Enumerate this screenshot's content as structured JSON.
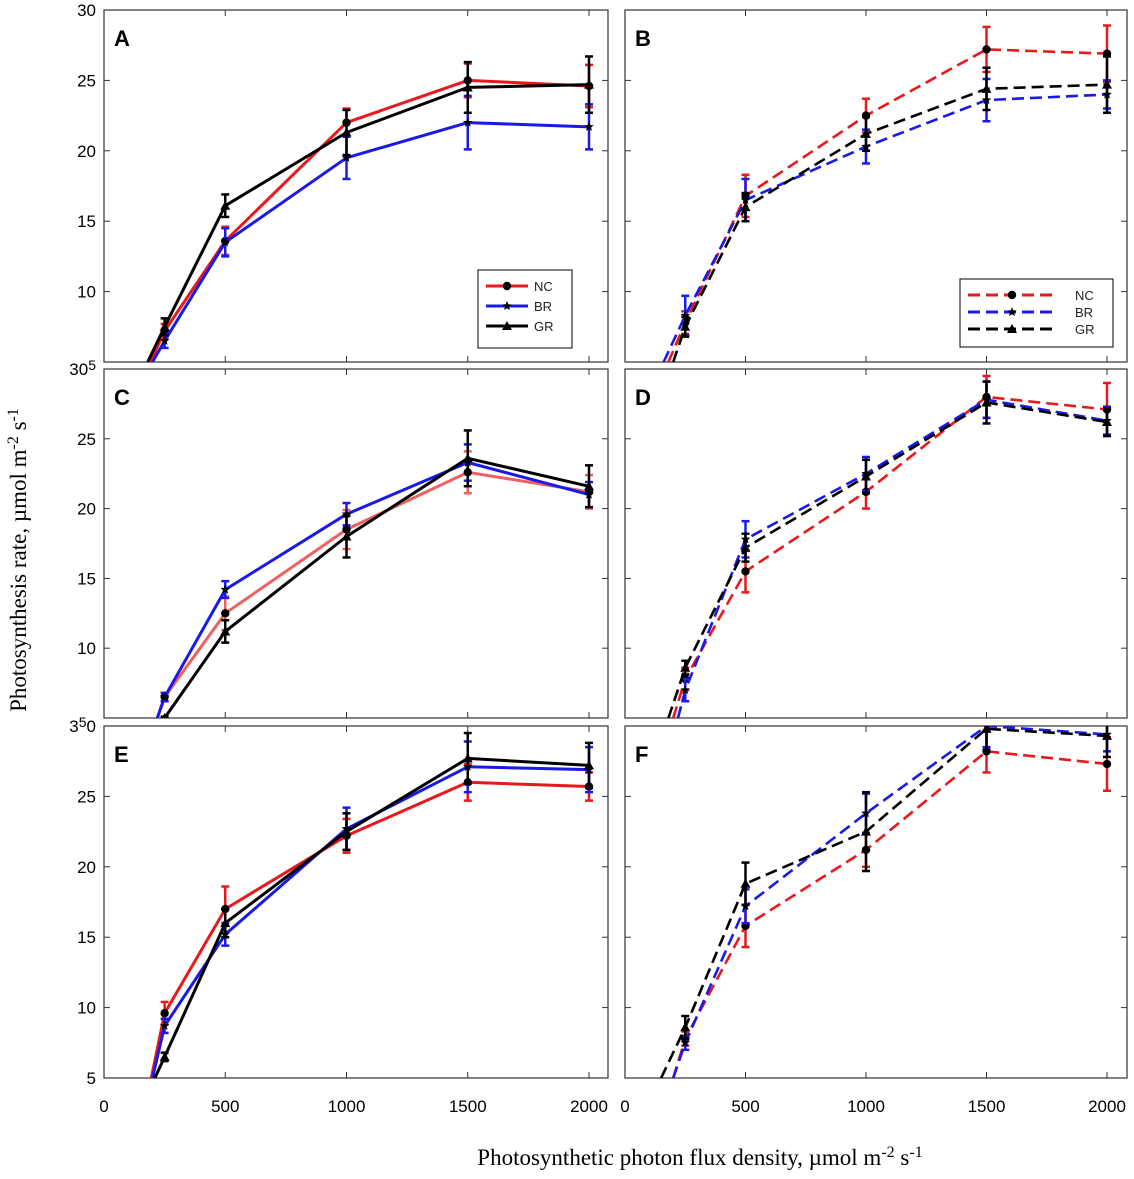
{
  "figure": {
    "ylabel_main": "Photosynthesis rate, µmol m",
    "ylabel_sup1": "-2",
    "ylabel_mid": " s",
    "ylabel_sup2": "-1",
    "xlabel_main": "Photosynthetic photon flux density, µmol m",
    "xlabel_sup1": "-2",
    "xlabel_mid": " s",
    "xlabel_sup2": "-1"
  },
  "colors": {
    "NC": "#e8181c",
    "NC_light": "#f06060",
    "BR": "#1a1ae6",
    "GR": "#000000"
  },
  "legend": {
    "NC": "NC",
    "BR": "BR",
    "GR": "GR"
  },
  "chart_data": [
    {
      "panel": "A",
      "type": "line",
      "line_style": "solid",
      "x": [
        250,
        500,
        1000,
        1500,
        2000
      ],
      "xlim": [
        0,
        2000
      ],
      "ylim": [
        5,
        30
      ],
      "yticks": [
        5,
        10,
        15,
        20,
        25,
        30
      ],
      "xticks": [
        0,
        500,
        1000,
        1500,
        2000
      ],
      "show_legend": true,
      "legend_position": "lower-right",
      "series": [
        {
          "name": "NC",
          "values": [
            7.2,
            13.6,
            22.0,
            25.0,
            24.6
          ],
          "errors": [
            0.5,
            1.0,
            1.0,
            1.2,
            1.5
          ],
          "start": [
            190,
            5
          ]
        },
        {
          "name": "BR",
          "values": [
            6.5,
            13.5,
            19.5,
            22.0,
            21.7
          ],
          "errors": [
            0.5,
            1.0,
            1.5,
            1.9,
            1.6
          ],
          "start": [
            200,
            5
          ]
        },
        {
          "name": "GR",
          "values": [
            7.5,
            16.1,
            21.3,
            24.5,
            24.7
          ],
          "errors": [
            0.6,
            0.8,
            1.6,
            1.8,
            2.0
          ],
          "start": [
            180,
            5
          ]
        }
      ]
    },
    {
      "panel": "B",
      "type": "line",
      "line_style": "dashed",
      "x": [
        250,
        500,
        1000,
        1500,
        2000
      ],
      "xlim": [
        0,
        2000
      ],
      "ylim": [
        5,
        30
      ],
      "yticks": [
        5,
        10,
        15,
        20,
        25,
        30
      ],
      "xticks": [
        0,
        500,
        1000,
        1500,
        2000
      ],
      "show_legend": true,
      "legend_position": "lower-right",
      "series": [
        {
          "name": "NC",
          "values": [
            7.8,
            16.8,
            22.5,
            27.2,
            26.9
          ],
          "errors": [
            0.8,
            1.5,
            1.2,
            1.6,
            2.0
          ],
          "start": [
            180,
            5
          ]
        },
        {
          "name": "BR",
          "values": [
            8.3,
            16.5,
            20.3,
            23.6,
            24.0
          ],
          "errors": [
            1.4,
            1.5,
            1.2,
            1.5,
            1.0
          ],
          "start": [
            160,
            5
          ]
        },
        {
          "name": "GR",
          "values": [
            7.5,
            16.0,
            21.2,
            24.4,
            24.7
          ],
          "errors": [
            0.7,
            1.0,
            1.2,
            1.5,
            2.0
          ],
          "start": [
            200,
            5
          ]
        }
      ]
    },
    {
      "panel": "C",
      "type": "line",
      "line_style": "solid",
      "x": [
        250,
        500,
        1000,
        1500,
        2000
      ],
      "xlim": [
        0,
        2000
      ],
      "ylim": [
        5,
        30
      ],
      "yticks": [
        5,
        10,
        15,
        20,
        25,
        30
      ],
      "xticks": [
        0,
        500,
        1000,
        1500,
        2000
      ],
      "show_legend": false,
      "series": [
        {
          "name": "NC",
          "values": [
            6.5,
            12.5,
            18.5,
            22.6,
            21.2
          ],
          "errors": [
            0.3,
            1.2,
            1.4,
            1.5,
            1.2
          ],
          "start": [
            220,
            5
          ],
          "color_key": "NC_light"
        },
        {
          "name": "BR",
          "values": [
            6.5,
            14.2,
            19.6,
            23.3,
            21.0
          ],
          "errors": [
            0.3,
            0.6,
            0.8,
            1.3,
            0.9
          ],
          "start": [
            220,
            5
          ]
        },
        {
          "name": "GR",
          "values": [
            5.0,
            11.2,
            18.0,
            23.6,
            21.6
          ],
          "errors": [
            0.1,
            0.8,
            1.5,
            2.0,
            1.5
          ],
          "start": [
            240,
            5
          ]
        }
      ]
    },
    {
      "panel": "D",
      "type": "line",
      "line_style": "dashed",
      "x": [
        250,
        500,
        1000,
        1500,
        2000
      ],
      "xlim": [
        0,
        2000
      ],
      "ylim": [
        5,
        30
      ],
      "yticks": [
        5,
        10,
        15,
        20,
        25,
        30
      ],
      "xticks": [
        0,
        500,
        1000,
        1500,
        2000
      ],
      "show_legend": false,
      "series": [
        {
          "name": "NC",
          "values": [
            7.8,
            15.5,
            21.2,
            28.0,
            27.1
          ],
          "errors": [
            0.8,
            1.5,
            1.2,
            1.5,
            1.9
          ],
          "start": [
            200,
            5
          ]
        },
        {
          "name": "BR",
          "values": [
            7.0,
            17.8,
            22.5,
            27.8,
            26.3
          ],
          "errors": [
            0.8,
            1.3,
            1.2,
            1.3,
            1.0
          ],
          "start": [
            220,
            5
          ]
        },
        {
          "name": "GR",
          "values": [
            8.6,
            17.2,
            22.3,
            27.6,
            26.2
          ],
          "errors": [
            0.5,
            1.0,
            1.2,
            1.5,
            1.0
          ],
          "start": [
            180,
            5
          ]
        }
      ]
    },
    {
      "panel": "E",
      "type": "line",
      "line_style": "solid",
      "x": [
        250,
        500,
        1000,
        1500,
        2000
      ],
      "xlim": [
        0,
        2000
      ],
      "ylim": [
        5,
        30
      ],
      "yticks": [
        5,
        10,
        15,
        20,
        25,
        30
      ],
      "xticks": [
        0,
        500,
        1000,
        1500,
        2000
      ],
      "show_legend": false,
      "series": [
        {
          "name": "NC",
          "values": [
            9.6,
            17.0,
            22.2,
            26.0,
            25.7
          ],
          "errors": [
            0.8,
            1.6,
            1.2,
            1.3,
            1.0
          ],
          "start": [
            195,
            5
          ]
        },
        {
          "name": "BR",
          "values": [
            8.7,
            15.2,
            22.7,
            27.1,
            26.9
          ],
          "errors": [
            0.5,
            0.8,
            1.5,
            1.8,
            1.6
          ],
          "start": [
            200,
            5
          ]
        },
        {
          "name": "GR",
          "values": [
            6.5,
            16.0,
            22.5,
            27.7,
            27.2
          ],
          "errors": [
            0.3,
            1.0,
            1.3,
            1.8,
            1.6
          ],
          "start": [
            210,
            5
          ]
        }
      ]
    },
    {
      "panel": "F",
      "type": "line",
      "line_style": "dashed",
      "x": [
        250,
        500,
        1000,
        1500,
        2000
      ],
      "xlim": [
        0,
        2000
      ],
      "ylim": [
        5,
        30
      ],
      "yticks": [
        5,
        10,
        15,
        20,
        25,
        30
      ],
      "xticks": [
        0,
        500,
        1000,
        1500,
        2000
      ],
      "show_legend": false,
      "series": [
        {
          "name": "NC",
          "values": [
            7.8,
            15.8,
            21.2,
            28.2,
            27.3
          ],
          "errors": [
            0.5,
            1.5,
            1.2,
            1.5,
            1.9
          ],
          "start": [
            200,
            5
          ]
        },
        {
          "name": "BR",
          "values": [
            7.5,
            17.2,
            23.8,
            30.0,
            29.4
          ],
          "errors": [
            0.5,
            1.2,
            1.4,
            1.5,
            1.2
          ],
          "start": [
            200,
            5
          ]
        },
        {
          "name": "GR",
          "values": [
            8.6,
            18.8,
            22.5,
            29.8,
            29.3
          ],
          "errors": [
            0.8,
            1.5,
            2.8,
            1.5,
            1.5
          ],
          "start": [
            150,
            5
          ]
        }
      ]
    }
  ]
}
